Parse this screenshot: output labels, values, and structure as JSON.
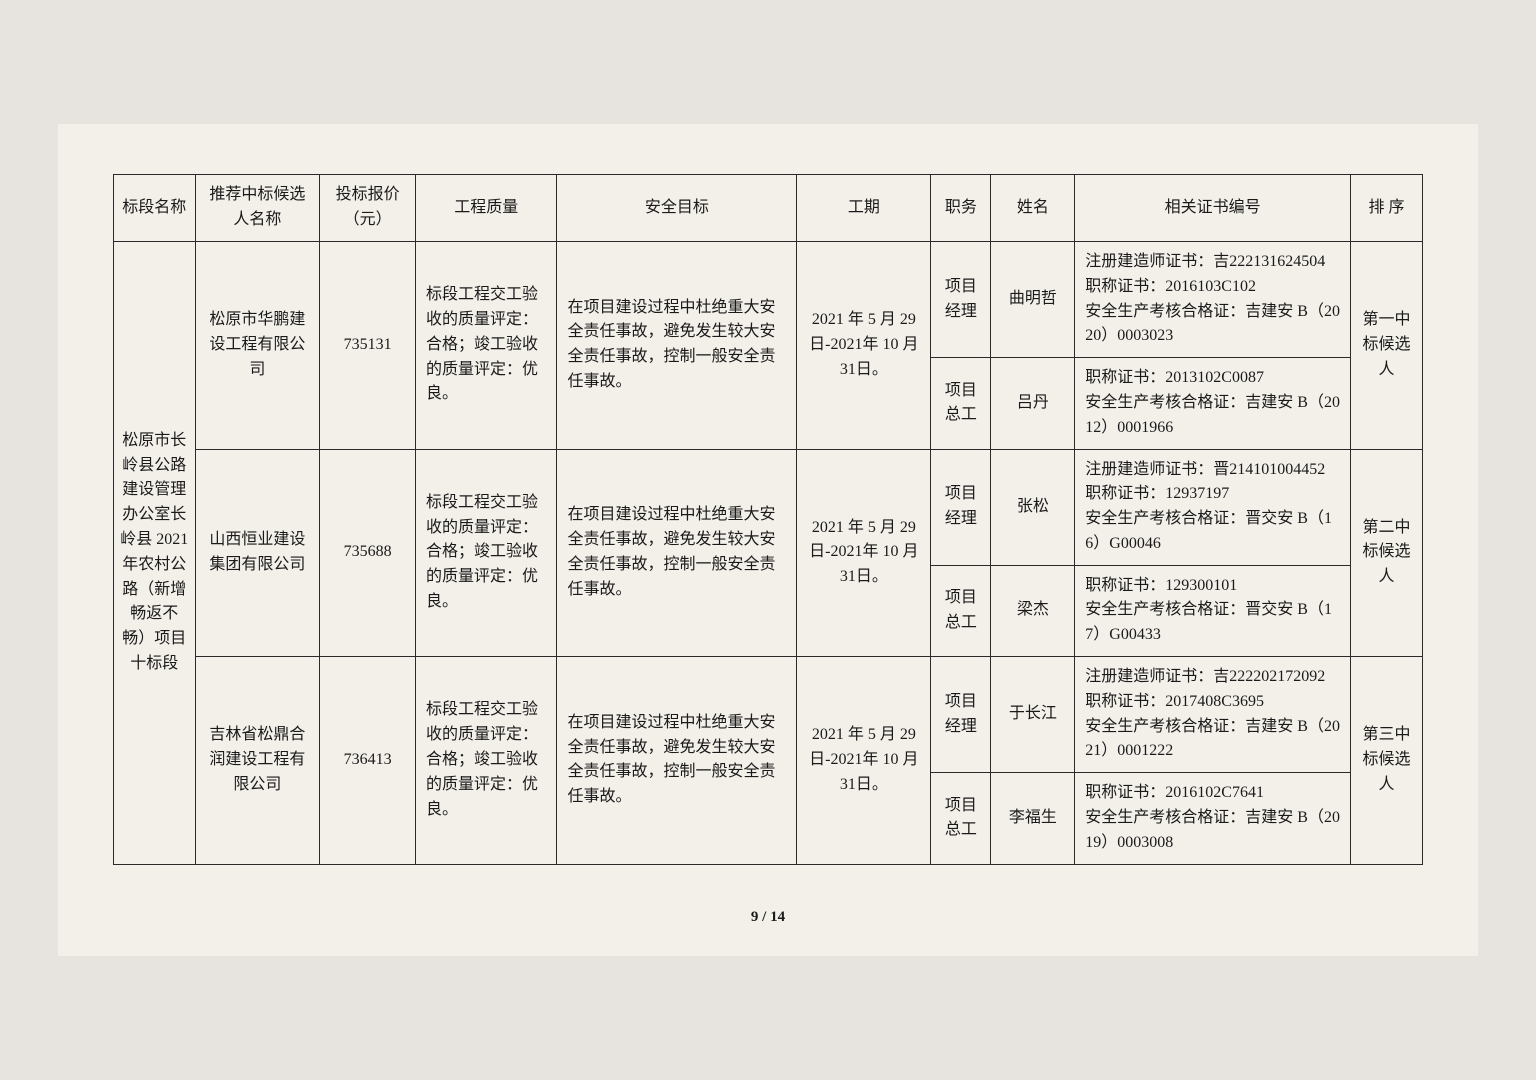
{
  "headers": {
    "section_name": "标段名称",
    "candidate_name": "推荐中标候选人名称",
    "bid_price": "投标报价（元）",
    "quality": "工程质量",
    "safety": "安全目标",
    "duration": "工期",
    "role": "职务",
    "person_name": "姓名",
    "cert": "相关证书编号",
    "rank": "排 序"
  },
  "section_name": "松原市长岭县公路建设管理办公室长岭县 2021 年农村公路（新增畅返不畅）项目十标段",
  "candidates": [
    {
      "name": "松原市华鹏建设工程有限公司",
      "price": "735131",
      "quality": "标段工程交工验收的质量评定：合格；竣工验收的质量评定：优良。",
      "safety": "在项目建设过程中杜绝重大安全责任事故，避免发生较大安全责任事故，控制一般安全责任事故。",
      "duration": "2021 年 5 月 29 日-2021年 10 月 31日。",
      "rank": "第一中标候选人",
      "staff": [
        {
          "role": "项目经理",
          "name": "曲明哲",
          "cert": "注册建造师证书：吉222131624504\n职称证书：2016103C102\n安全生产考核合格证：吉建安 B（2020）0003023"
        },
        {
          "role": "项目总工",
          "name": "吕丹",
          "cert": "职称证书：2013102C0087\n安全生产考核合格证：吉建安 B（2012）0001966"
        }
      ]
    },
    {
      "name": "山西恒业建设集团有限公司",
      "price": "735688",
      "quality": "标段工程交工验收的质量评定：合格；竣工验收的质量评定：优良。",
      "safety": "在项目建设过程中杜绝重大安全责任事故，避免发生较大安全责任事故，控制一般安全责任事故。",
      "duration": "2021 年 5 月 29 日-2021年 10 月 31日。",
      "rank": "第二中标候选人",
      "staff": [
        {
          "role": "项目经理",
          "name": "张松",
          "cert": "注册建造师证书：晋214101004452\n职称证书：12937197\n安全生产考核合格证：晋交安 B（16）G00046"
        },
        {
          "role": "项目总工",
          "name": "梁杰",
          "cert": "职称证书：129300101\n安全生产考核合格证：晋交安 B（17）G00433"
        }
      ]
    },
    {
      "name": "吉林省松鼎合润建设工程有限公司",
      "price": "736413",
      "quality": "标段工程交工验收的质量评定：合格；竣工验收的质量评定：优良。",
      "safety": "在项目建设过程中杜绝重大安全责任事故，避免发生较大安全责任事故，控制一般安全责任事故。",
      "duration": "2021 年 5 月 29 日-2021年 10 月 31日。",
      "rank": "第三中标候选人",
      "staff": [
        {
          "role": "项目经理",
          "name": "于长江",
          "cert": "注册建造师证书：吉222202172092\n职称证书：2017408C3695\n安全生产考核合格证：吉建安 B（2021）0001222"
        },
        {
          "role": "项目总工",
          "name": "李福生",
          "cert": "职称证书：2016102C7641\n安全生产考核合格证：吉建安 B（2019）0003008"
        }
      ]
    }
  ],
  "footer": "9 / 14"
}
